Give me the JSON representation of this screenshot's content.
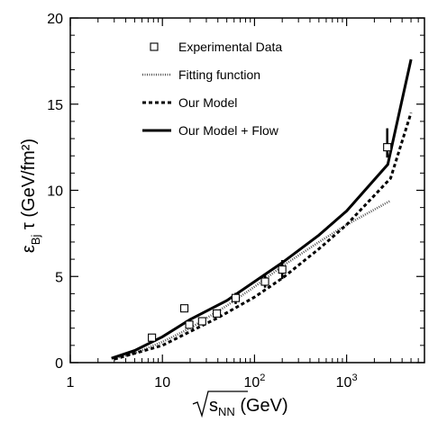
{
  "chart_data": {
    "type": "line",
    "xlabel": "√s_NN (GeV)",
    "ylabel": "ε_Bj τ (GeV/fm²)",
    "xscale": "log",
    "xlim": [
      1,
      7000
    ],
    "ylim": [
      0,
      20
    ],
    "x_ticks": [
      {
        "value": 1,
        "label": "1",
        "sup": ""
      },
      {
        "value": 10,
        "label": "10",
        "sup": ""
      },
      {
        "value": 100,
        "label": "10",
        "sup": "2"
      },
      {
        "value": 1000,
        "label": "10",
        "sup": "3"
      }
    ],
    "y_ticks": [
      0,
      5,
      10,
      15,
      20
    ],
    "legend_position": "top-left",
    "series": [
      {
        "name": "Experimental Data",
        "style": "markers",
        "points": [
          {
            "x": 7.7,
            "y": 1.45
          },
          {
            "x": 17.3,
            "y": 3.15
          },
          {
            "x": 19.6,
            "y": 2.2
          },
          {
            "x": 27,
            "y": 2.4
          },
          {
            "x": 39,
            "y": 2.85
          },
          {
            "x": 62.4,
            "y": 3.75
          },
          {
            "x": 130,
            "y": 4.7
          },
          {
            "x": 200,
            "y": 5.4
          },
          {
            "x": 2760,
            "y": 12.5
          }
        ],
        "error_bars": [
          {
            "x": 62.4,
            "low": 3.4,
            "high": 4.05
          },
          {
            "x": 130,
            "low": 4.35,
            "high": 5.1
          },
          {
            "x": 200,
            "low": 4.85,
            "high": 5.95
          },
          {
            "x": 2760,
            "low": 11.9,
            "high": 13.6
          }
        ]
      },
      {
        "name": "Fitting function",
        "style": "dotted",
        "points": [
          {
            "x": 3,
            "y": 0.25
          },
          {
            "x": 5,
            "y": 0.55
          },
          {
            "x": 10,
            "y": 1.2
          },
          {
            "x": 20,
            "y": 2.0
          },
          {
            "x": 50,
            "y": 3.3
          },
          {
            "x": 100,
            "y": 4.4
          },
          {
            "x": 200,
            "y": 5.6
          },
          {
            "x": 500,
            "y": 7.0
          },
          {
            "x": 1000,
            "y": 8.0
          },
          {
            "x": 3000,
            "y": 9.4
          }
        ]
      },
      {
        "name": "Our Model",
        "style": "dashed",
        "points": [
          {
            "x": 3,
            "y": 0.2
          },
          {
            "x": 10,
            "y": 1.0
          },
          {
            "x": 20,
            "y": 1.8
          },
          {
            "x": 40,
            "y": 2.6
          },
          {
            "x": 100,
            "y": 3.8
          },
          {
            "x": 200,
            "y": 4.9
          },
          {
            "x": 500,
            "y": 6.6
          },
          {
            "x": 1000,
            "y": 8.0
          },
          {
            "x": 2000,
            "y": 9.7
          },
          {
            "x": 3000,
            "y": 10.7
          },
          {
            "x": 5000,
            "y": 14.5
          }
        ]
      },
      {
        "name": "Our Model + Flow",
        "style": "solid",
        "points": [
          {
            "x": 2.8,
            "y": 0.25
          },
          {
            "x": 5,
            "y": 0.7
          },
          {
            "x": 10,
            "y": 1.5
          },
          {
            "x": 20,
            "y": 2.5
          },
          {
            "x": 50,
            "y": 3.6
          },
          {
            "x": 100,
            "y": 4.7
          },
          {
            "x": 200,
            "y": 5.8
          },
          {
            "x": 500,
            "y": 7.4
          },
          {
            "x": 1000,
            "y": 8.8
          },
          {
            "x": 2800,
            "y": 11.5
          },
          {
            "x": 5000,
            "y": 17.6
          }
        ]
      }
    ]
  }
}
